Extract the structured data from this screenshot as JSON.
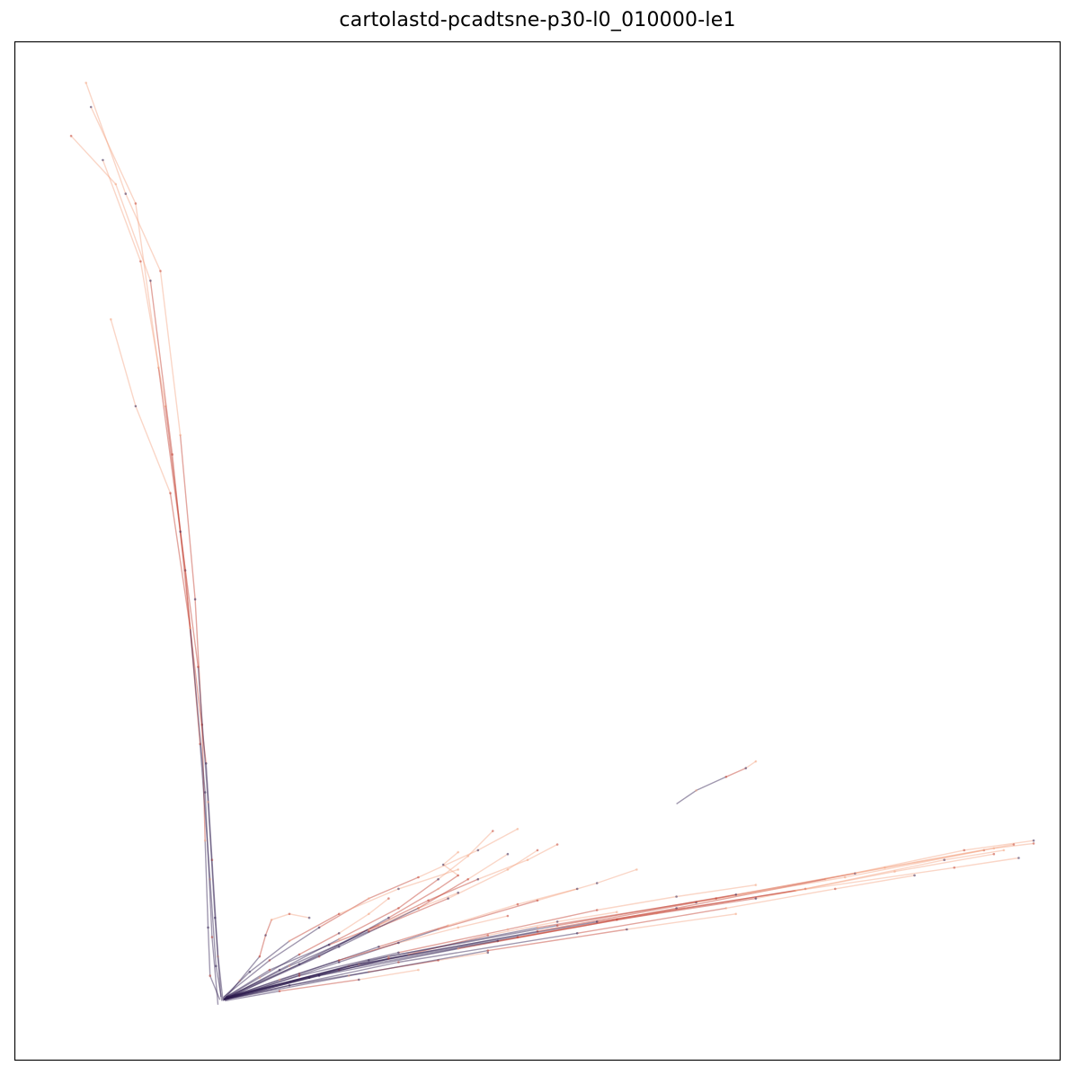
{
  "chart_data": {
    "type": "line",
    "title": "cartolastd-pcadtsne-p30-l0_010000-le1",
    "xlabel": "",
    "ylabel": "",
    "axes_visible": false,
    "grid": false,
    "legend": "none",
    "xlim": [
      0,
      1000
    ],
    "ylim": [
      0,
      1000
    ],
    "colors": {
      "early": "#f4a582",
      "mid": "#c0392b",
      "late": "#2c1a4d",
      "frame": "#000000"
    },
    "series": [
      {
        "values": [
          [
            180,
            35
          ],
          [
            170,
            60
          ],
          [
            168,
            110
          ],
          [
            165,
            200
          ],
          [
            162,
            320
          ],
          [
            155,
            450
          ],
          [
            140,
            620
          ],
          [
            120,
            790
          ],
          [
            85,
            870
          ],
          [
            45,
            985
          ]
        ]
      },
      {
        "values": [
          [
            182,
            34
          ],
          [
            176,
            70
          ],
          [
            170,
            160
          ],
          [
            160,
            300
          ],
          [
            145,
            480
          ],
          [
            125,
            650
          ],
          [
            100,
            800
          ],
          [
            62,
            905
          ]
        ]
      },
      {
        "values": [
          [
            183,
            35
          ],
          [
            178,
            80
          ],
          [
            172,
            180
          ],
          [
            166,
            280
          ],
          [
            150,
            420
          ],
          [
            130,
            560
          ],
          [
            95,
            650
          ],
          [
            70,
            740
          ]
        ]
      },
      {
        "values": [
          [
            178,
            30
          ],
          [
            172,
            100
          ],
          [
            165,
            250
          ],
          [
            150,
            420
          ],
          [
            132,
            600
          ],
          [
            110,
            780
          ],
          [
            75,
            880
          ],
          [
            30,
            930
          ]
        ]
      },
      {
        "values": [
          [
            181,
            38
          ],
          [
            175,
            120
          ],
          [
            168,
            240
          ],
          [
            158,
            380
          ],
          [
            140,
            520
          ],
          [
            118,
            690
          ],
          [
            95,
            860
          ],
          [
            50,
            960
          ]
        ]
      },
      {
        "values": [
          [
            184,
            36
          ],
          [
            310,
            70
          ],
          [
            480,
            100
          ],
          [
            640,
            130
          ],
          [
            790,
            160
          ],
          [
            930,
            190
          ],
          [
            1000,
            200
          ]
        ]
      },
      {
        "values": [
          [
            185,
            37
          ],
          [
            300,
            66
          ],
          [
            460,
            96
          ],
          [
            620,
            125
          ],
          [
            770,
            150
          ],
          [
            910,
            180
          ],
          [
            970,
            190
          ]
        ]
      },
      {
        "values": [
          [
            183,
            35
          ],
          [
            280,
            60
          ],
          [
            420,
            88
          ],
          [
            580,
            118
          ],
          [
            720,
            140
          ],
          [
            860,
            168
          ],
          [
            960,
            186
          ]
        ]
      },
      {
        "values": [
          [
            186,
            38
          ],
          [
            320,
            72
          ],
          [
            500,
            106
          ],
          [
            660,
            136
          ],
          [
            810,
            162
          ],
          [
            950,
            190
          ]
        ]
      },
      {
        "values": [
          [
            184,
            36
          ],
          [
            260,
            60
          ],
          [
            360,
            84
          ],
          [
            470,
            108
          ],
          [
            560,
            128
          ],
          [
            640,
            142
          ],
          [
            720,
            154
          ]
        ]
      },
      {
        "values": [
          [
            185,
            36
          ],
          [
            240,
            66
          ],
          [
            300,
            98
          ],
          [
            360,
            130
          ],
          [
            400,
            160
          ],
          [
            430,
            184
          ],
          [
            455,
            210
          ]
        ]
      },
      {
        "values": [
          [
            186,
            37
          ],
          [
            250,
            70
          ],
          [
            330,
            106
          ],
          [
            410,
            140
          ],
          [
            470,
            170
          ],
          [
            500,
            190
          ]
        ]
      },
      {
        "values": [
          [
            184,
            38
          ],
          [
            230,
            76
          ],
          [
            280,
            110
          ],
          [
            330,
            140
          ],
          [
            380,
            162
          ],
          [
            440,
            190
          ],
          [
            480,
            212
          ]
        ]
      },
      {
        "values": [
          [
            185,
            35
          ],
          [
            300,
            74
          ],
          [
            400,
            108
          ],
          [
            500,
            138
          ],
          [
            560,
            156
          ],
          [
            600,
            170
          ]
        ]
      },
      {
        "values": [
          [
            183,
            36
          ],
          [
            220,
            58
          ],
          [
            260,
            82
          ],
          [
            300,
            104
          ],
          [
            330,
            124
          ],
          [
            350,
            140
          ]
        ]
      },
      {
        "values": [
          [
            185,
            37
          ],
          [
            260,
            62
          ],
          [
            340,
            90
          ],
          [
            410,
            112
          ],
          [
            480,
            134
          ],
          [
            540,
            150
          ]
        ]
      },
      {
        "values": [
          [
            184,
            35
          ],
          [
            270,
            58
          ],
          [
            370,
            82
          ],
          [
            450,
            102
          ],
          [
            520,
            116
          ],
          [
            580,
            126
          ]
        ]
      },
      {
        "values": [
          [
            183,
            34
          ],
          [
            200,
            55
          ],
          [
            220,
            80
          ],
          [
            226,
            102
          ],
          [
            232,
            118
          ],
          [
            250,
            124
          ],
          [
            270,
            120
          ]
        ]
      },
      {
        "values": [
          [
            186,
            38
          ],
          [
            230,
            66
          ],
          [
            290,
            92
          ],
          [
            340,
            112
          ],
          [
            380,
            130
          ],
          [
            420,
            146
          ]
        ]
      },
      {
        "values": [
          [
            184,
            36
          ],
          [
            330,
            76
          ],
          [
            500,
            110
          ],
          [
            680,
            140
          ],
          [
            820,
            166
          ],
          [
            960,
            192
          ],
          [
            1000,
            197
          ]
        ]
      },
      {
        "values": [
          [
            185,
            37
          ],
          [
            350,
            80
          ],
          [
            520,
            112
          ],
          [
            700,
            144
          ],
          [
            850,
            172
          ],
          [
            980,
            196
          ]
        ]
      },
      {
        "values": [
          [
            187,
            36
          ],
          [
            360,
            74
          ],
          [
            540,
            104
          ],
          [
            690,
            130
          ],
          [
            800,
            150
          ],
          [
            880,
            164
          ]
        ]
      },
      {
        "values": [
          [
            184,
            35
          ],
          [
            250,
            50
          ],
          [
            330,
            64
          ],
          [
            400,
            76
          ],
          [
            450,
            84
          ]
        ]
      },
      {
        "values": [
          [
            640,
            238
          ],
          [
            660,
            252
          ],
          [
            690,
            266
          ],
          [
            710,
            275
          ],
          [
            720,
            282
          ]
        ]
      },
      {
        "values": [
          [
            185,
            36
          ],
          [
            280,
            80
          ],
          [
            350,
            120
          ],
          [
            400,
            150
          ],
          [
            420,
            164
          ],
          [
            405,
            175
          ],
          [
            420,
            188
          ]
        ]
      },
      {
        "values": [
          [
            186,
            38
          ],
          [
            300,
            90
          ],
          [
            380,
            130
          ],
          [
            430,
            160
          ],
          [
            470,
            186
          ]
        ]
      },
      {
        "values": [
          [
            184,
            36
          ],
          [
            240,
            56
          ],
          [
            300,
            76
          ],
          [
            360,
            94
          ],
          [
            420,
            110
          ],
          [
            470,
            122
          ]
        ]
      },
      {
        "values": [
          [
            185,
            36
          ],
          [
            350,
            78
          ],
          [
            560,
            116
          ],
          [
            760,
            148
          ],
          [
            920,
            172
          ],
          [
            985,
            182
          ]
        ]
      },
      {
        "values": [
          [
            183,
            37
          ],
          [
            210,
            64
          ],
          [
            250,
            96
          ],
          [
            300,
            124
          ],
          [
            360,
            150
          ],
          [
            420,
            170
          ]
        ]
      },
      {
        "values": [
          [
            184,
            35
          ],
          [
            310,
            60
          ],
          [
            450,
            86
          ],
          [
            590,
            108
          ],
          [
            700,
            124
          ]
        ]
      },
      {
        "values": [
          [
            185,
            34
          ],
          [
            240,
            44
          ],
          [
            320,
            56
          ],
          [
            380,
            66
          ]
        ]
      },
      {
        "values": [
          [
            186,
            36
          ],
          [
            260,
            72
          ],
          [
            330,
            108
          ],
          [
            390,
            138
          ],
          [
            440,
            160
          ],
          [
            490,
            180
          ],
          [
            520,
            196
          ]
        ]
      }
    ]
  }
}
